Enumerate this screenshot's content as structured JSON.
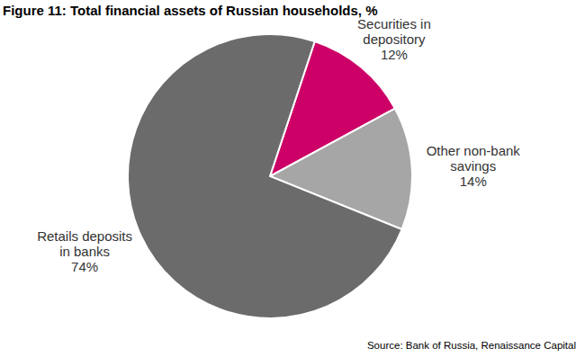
{
  "chart_data": {
    "type": "pie",
    "title": "Figure 11: Total financial assets of Russian households, %",
    "source": "Source: Bank of Russia, Renaissance Capital",
    "categories": [
      "Securities in depository",
      "Other non-bank savings",
      "Retails deposits in banks"
    ],
    "values": [
      12,
      14,
      74
    ],
    "value_labels": [
      "12%",
      "14%",
      "74%"
    ],
    "colors": [
      "#cc0066",
      "#a6a6a6",
      "#6b6b6b"
    ],
    "data_labels": true
  }
}
